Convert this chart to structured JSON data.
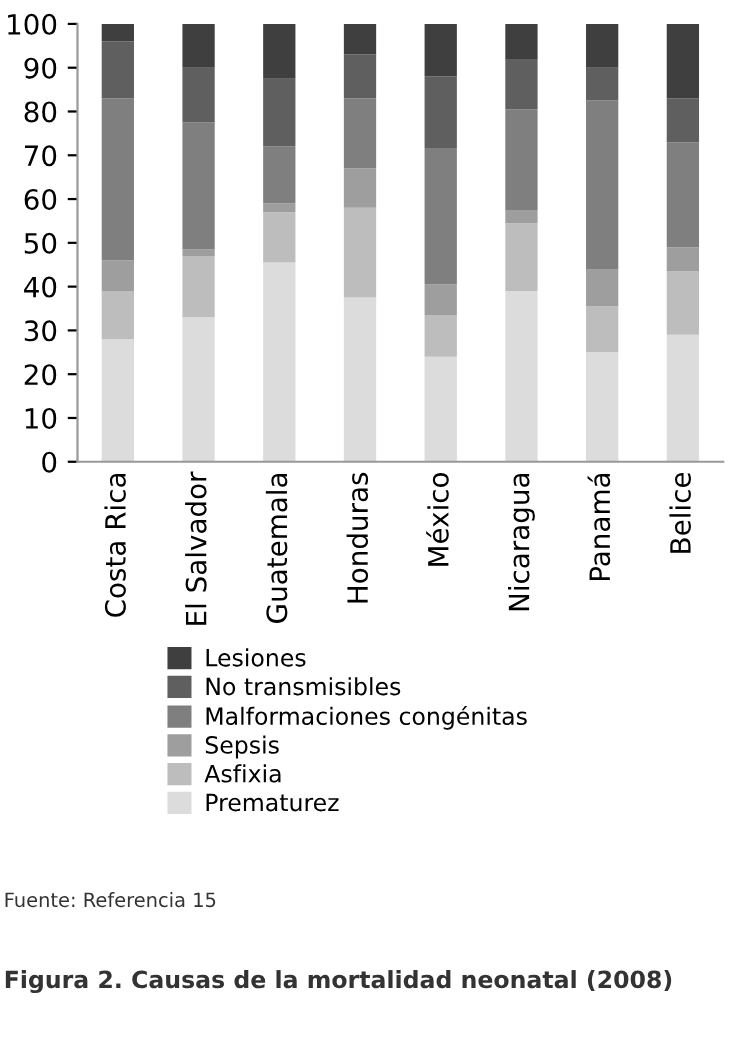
{
  "chart_data": {
    "type": "bar",
    "stacked": true,
    "title": "Figura 2. Causas de la mortalidad neonatal (2008)",
    "annotations": [
      "Fuente: Referencia 15"
    ],
    "categories": [
      "Costa Rica",
      "El Salvador",
      "Guatemala",
      "Honduras",
      "México",
      "Nicaragua",
      "Panamá",
      "Belice"
    ],
    "series": [
      {
        "name": "Prematurez",
        "color": "#dcdcdc",
        "values": [
          28,
          33,
          45.5,
          37.5,
          24,
          39,
          25,
          29
        ]
      },
      {
        "name": "Asfixia",
        "color": "#bdbdbd",
        "values": [
          11,
          14,
          11.5,
          20.5,
          9.5,
          15.5,
          10.5,
          14.5
        ]
      },
      {
        "name": "Sepsis",
        "color": "#9e9e9e",
        "values": [
          7,
          1.5,
          2,
          9,
          7,
          3,
          8.5,
          5.5
        ]
      },
      {
        "name": "Malformaciones congénitas",
        "color": "#7f7f7f",
        "values": [
          37,
          29,
          13,
          16,
          31,
          23,
          38.5,
          24
        ]
      },
      {
        "name": "No transmisibles",
        "color": "#5f5f5f",
        "values": [
          13,
          12.5,
          15.5,
          10,
          16.5,
          11.5,
          7.5,
          10
        ]
      },
      {
        "name": "Lesiones",
        "color": "#3f3f3f",
        "values": [
          4,
          10,
          12.5,
          7,
          12,
          8,
          10,
          17
        ]
      }
    ],
    "ylim": [
      0,
      100
    ],
    "yticks": [
      0,
      10,
      20,
      30,
      40,
      50,
      60,
      70,
      80,
      90,
      100
    ],
    "grid": false,
    "legend": "bottom"
  }
}
